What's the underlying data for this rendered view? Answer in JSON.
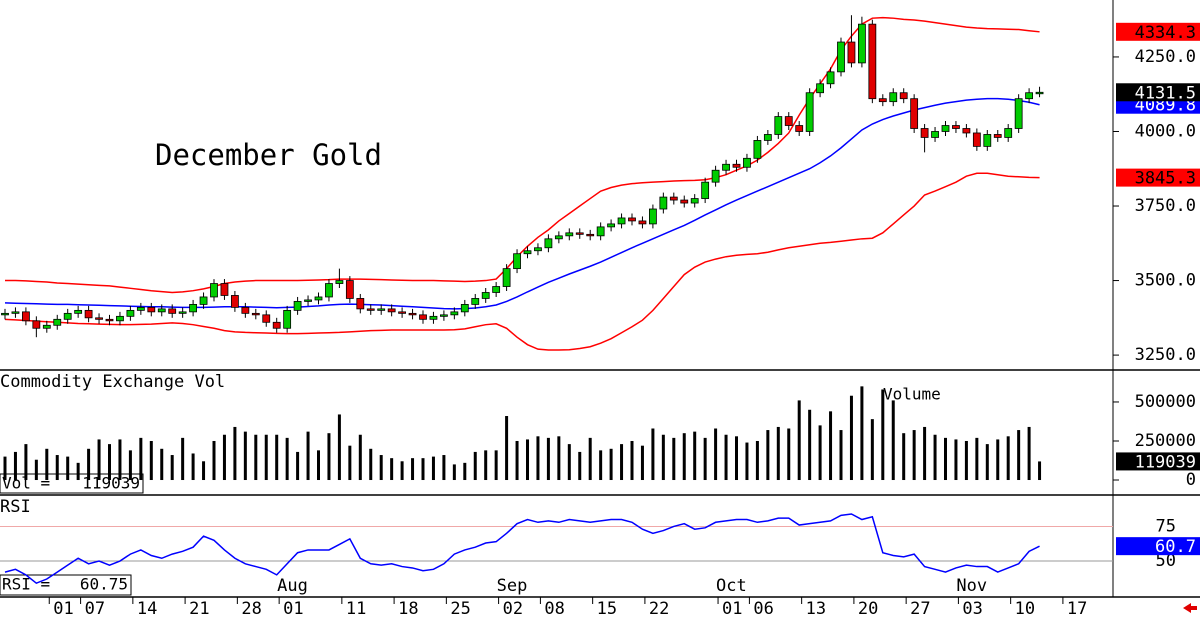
{
  "chart_data": {
    "type": "candlestick",
    "title": "December Gold",
    "categories": [
      null,
      null,
      null,
      null,
      null,
      "01",
      null,
      null,
      "07",
      null,
      null,
      null,
      null,
      "14",
      null,
      null,
      null,
      null,
      "21",
      null,
      null,
      null,
      null,
      "28",
      null,
      null,
      null,
      "01",
      null,
      null,
      null,
      null,
      null,
      "11",
      null,
      null,
      null,
      null,
      "18",
      null,
      null,
      null,
      null,
      "25",
      null,
      null,
      null,
      null,
      "02",
      null,
      null,
      null,
      "08",
      null,
      null,
      null,
      null,
      "15",
      null,
      null,
      null,
      null,
      "22",
      null,
      null,
      null,
      null,
      null,
      null,
      "01",
      null,
      null,
      "06",
      null,
      null,
      null,
      null,
      "13",
      null,
      null,
      null,
      null,
      "20",
      null,
      null,
      null,
      null,
      "27",
      null,
      null,
      null,
      null,
      "03",
      null,
      null,
      null,
      null,
      "10",
      null,
      null,
      null,
      null,
      "17"
    ],
    "months": [
      null,
      null,
      null,
      null,
      null,
      null,
      null,
      null,
      null,
      null,
      null,
      null,
      null,
      null,
      null,
      null,
      null,
      null,
      null,
      null,
      null,
      null,
      null,
      null,
      null,
      null,
      null,
      "Aug",
      null,
      null,
      null,
      null,
      null,
      null,
      null,
      null,
      null,
      null,
      null,
      null,
      null,
      null,
      null,
      null,
      null,
      null,
      null,
      null,
      "Sep",
      null,
      null,
      null,
      null,
      null,
      null,
      null,
      null,
      null,
      null,
      null,
      null,
      null,
      null,
      null,
      null,
      null,
      null,
      null,
      null,
      "Oct",
      null,
      null,
      null,
      null,
      null,
      null,
      null,
      null,
      null,
      null,
      null,
      null,
      null,
      null,
      null,
      null,
      null,
      null,
      null,
      null,
      null,
      null,
      "Nov",
      null,
      null,
      null,
      null,
      null,
      null,
      null,
      null,
      null,
      null
    ],
    "open": [
      3385,
      3390,
      3395,
      3365,
      3340,
      3350,
      3370,
      3390,
      3400,
      3375,
      3370,
      3365,
      3380,
      3400,
      3410,
      3395,
      3405,
      3390,
      3395,
      3420,
      3445,
      3490,
      3450,
      3410,
      3390,
      3385,
      3360,
      3340,
      3400,
      3430,
      3435,
      3445,
      3490,
      3500,
      3440,
      3405,
      3400,
      3405,
      3395,
      3390,
      3385,
      3370,
      3380,
      3385,
      3395,
      3420,
      3440,
      3460,
      3480,
      3540,
      3590,
      3600,
      3610,
      3640,
      3650,
      3660,
      3655,
      3650,
      3680,
      3690,
      3710,
      3700,
      3690,
      3740,
      3780,
      3770,
      3760,
      3775,
      3830,
      3870,
      3890,
      3880,
      3910,
      3970,
      3990,
      4050,
      4020,
      4000,
      4130,
      4160,
      4200,
      4300,
      4230,
      4360,
      4110,
      4100,
      4130,
      4110,
      4010,
      3980,
      4000,
      4020,
      4010,
      3995,
      3950,
      3990,
      3980,
      4010,
      4110,
      4130,
      null,
      null,
      null
    ],
    "high": [
      3405,
      3410,
      3410,
      3380,
      3365,
      3385,
      3405,
      3415,
      3415,
      3390,
      3385,
      3395,
      3415,
      3425,
      3425,
      3420,
      3420,
      3410,
      3435,
      3460,
      3505,
      3505,
      3465,
      3425,
      3405,
      3400,
      3375,
      3415,
      3445,
      3450,
      3460,
      3505,
      3540,
      3515,
      3455,
      3420,
      3420,
      3420,
      3410,
      3405,
      3400,
      3395,
      3400,
      3410,
      3435,
      3455,
      3475,
      3495,
      3555,
      3605,
      3615,
      3625,
      3655,
      3665,
      3675,
      3675,
      3670,
      3695,
      3705,
      3725,
      3725,
      3715,
      3755,
      3795,
      3795,
      3785,
      3790,
      3845,
      3885,
      3905,
      3905,
      3925,
      3985,
      4005,
      4065,
      4065,
      4035,
      4145,
      4175,
      4215,
      4315,
      4390,
      4385,
      4375,
      4125,
      4145,
      4145,
      4125,
      4025,
      4015,
      4035,
      4035,
      4025,
      4010,
      4005,
      4005,
      4025,
      4125,
      4145,
      4150,
      null,
      null,
      null
    ],
    "low": [
      3370,
      3375,
      3350,
      3310,
      3325,
      3335,
      3355,
      3375,
      3360,
      3355,
      3350,
      3350,
      3365,
      3385,
      3380,
      3380,
      3375,
      3375,
      3380,
      3405,
      3430,
      3435,
      3395,
      3375,
      3370,
      3345,
      3325,
      3325,
      3385,
      3415,
      3420,
      3430,
      3475,
      3425,
      3390,
      3385,
      3385,
      3380,
      3375,
      3370,
      3355,
      3355,
      3365,
      3370,
      3380,
      3405,
      3425,
      3445,
      3465,
      3525,
      3575,
      3585,
      3595,
      3625,
      3635,
      3640,
      3635,
      3635,
      3665,
      3675,
      3685,
      3675,
      3675,
      3725,
      3755,
      3745,
      3745,
      3760,
      3815,
      3855,
      3865,
      3865,
      3895,
      3955,
      3975,
      4005,
      3985,
      3985,
      4115,
      4145,
      4185,
      4215,
      4215,
      4095,
      4085,
      4085,
      4095,
      3995,
      3930,
      3965,
      3985,
      3995,
      3980,
      3935,
      3935,
      3965,
      3965,
      3995,
      4095,
      4115,
      null,
      null,
      null
    ],
    "close": [
      3390,
      3395,
      3365,
      3340,
      3350,
      3370,
      3390,
      3400,
      3375,
      3370,
      3365,
      3380,
      3400,
      3410,
      3395,
      3405,
      3390,
      3395,
      3420,
      3445,
      3490,
      3450,
      3410,
      3390,
      3385,
      3360,
      3340,
      3400,
      3430,
      3435,
      3445,
      3490,
      3500,
      3440,
      3405,
      3400,
      3405,
      3395,
      3390,
      3385,
      3370,
      3380,
      3385,
      3395,
      3420,
      3440,
      3460,
      3480,
      3540,
      3590,
      3600,
      3610,
      3640,
      3650,
      3660,
      3655,
      3650,
      3680,
      3690,
      3710,
      3700,
      3690,
      3740,
      3780,
      3770,
      3760,
      3775,
      3830,
      3870,
      3890,
      3880,
      3910,
      3970,
      3990,
      4050,
      4020,
      4000,
      4130,
      4160,
      4200,
      4300,
      4230,
      4360,
      4110,
      4100,
      4130,
      4110,
      4010,
      3980,
      4000,
      4020,
      4010,
      3995,
      3950,
      3990,
      3980,
      4010,
      4110,
      4130,
      4131.5,
      null,
      null,
      null
    ],
    "up_color": "#00cc00",
    "down_color": "#e00000",
    "bands": {
      "upper": {
        "color": "#ff0000",
        "values": [
          3500,
          3500,
          3499,
          3497,
          3495,
          3492,
          3490,
          3488,
          3486,
          3484,
          3482,
          3478,
          3474,
          3470,
          3466,
          3463,
          3460,
          3462,
          3466,
          3472,
          3480,
          3490,
          3495,
          3498,
          3500,
          3500,
          3500,
          3500,
          3500,
          3501,
          3502,
          3503,
          3505,
          3505,
          3505,
          3504,
          3503,
          3502,
          3501,
          3500,
          3500,
          3500,
          3499,
          3498,
          3497,
          3498,
          3500,
          3505,
          3540,
          3580,
          3615,
          3645,
          3670,
          3700,
          3725,
          3750,
          3775,
          3800,
          3812,
          3820,
          3825,
          3828,
          3830,
          3832,
          3834,
          3835,
          3836,
          3838,
          3845,
          3855,
          3870,
          3885,
          3904,
          3930,
          3960,
          3995,
          4055,
          4110,
          4160,
          4210,
          4273,
          4320,
          4360,
          4380,
          4382,
          4380,
          4376,
          4374,
          4370,
          4365,
          4360,
          4355,
          4350,
          4347,
          4345,
          4344,
          4343,
          4342,
          4338,
          4334.3,
          null,
          null,
          null
        ]
      },
      "middle": {
        "color": "#0000ff",
        "values": [
          3425,
          3424,
          3423,
          3422,
          3421,
          3420,
          3420,
          3419,
          3418,
          3417,
          3416,
          3415,
          3414,
          3413,
          3412,
          3412,
          3411,
          3410,
          3410,
          3410,
          3411,
          3412,
          3412,
          3412,
          3411,
          3410,
          3409,
          3410,
          3411,
          3413,
          3415,
          3418,
          3420,
          3421,
          3420,
          3419,
          3418,
          3416,
          3414,
          3412,
          3410,
          3408,
          3406,
          3405,
          3406,
          3408,
          3412,
          3418,
          3430,
          3445,
          3462,
          3478,
          3494,
          3508,
          3522,
          3535,
          3548,
          3562,
          3578,
          3594,
          3610,
          3625,
          3640,
          3655,
          3670,
          3685,
          3702,
          3720,
          3737,
          3754,
          3770,
          3785,
          3800,
          3815,
          3830,
          3845,
          3860,
          3875,
          3895,
          3918,
          3945,
          3975,
          4005,
          4025,
          4040,
          4052,
          4062,
          4072,
          4080,
          4088,
          4095,
          4100,
          4105,
          4108,
          4110,
          4110,
          4108,
          4104,
          4098,
          4089.8,
          null,
          null,
          null
        ]
      },
      "lower": {
        "color": "#ff0000",
        "values": [
          3370,
          3368,
          3366,
          3364,
          3362,
          3360,
          3358,
          3356,
          3355,
          3354,
          3353,
          3352,
          3352,
          3353,
          3354,
          3356,
          3358,
          3356,
          3352,
          3346,
          3340,
          3332,
          3328,
          3326,
          3325,
          3324,
          3323,
          3322,
          3322,
          3323,
          3324,
          3325,
          3326,
          3328,
          3330,
          3332,
          3333,
          3334,
          3334,
          3334,
          3334,
          3334,
          3334,
          3335,
          3338,
          3345,
          3352,
          3355,
          3340,
          3310,
          3285,
          3270,
          3267,
          3267,
          3268,
          3272,
          3278,
          3290,
          3305,
          3325,
          3345,
          3367,
          3400,
          3440,
          3480,
          3520,
          3545,
          3562,
          3572,
          3580,
          3585,
          3588,
          3590,
          3595,
          3603,
          3610,
          3615,
          3620,
          3625,
          3628,
          3632,
          3636,
          3640,
          3642,
          3660,
          3690,
          3720,
          3750,
          3787,
          3800,
          3815,
          3830,
          3850,
          3860,
          3860,
          3855,
          3850,
          3848,
          3846,
          3845.3,
          null,
          null,
          null
        ]
      }
    },
    "ylim": [
      3200,
      4441
    ],
    "yticks": [
      {
        "value": 3250,
        "label": "3250.0"
      },
      {
        "value": 3500,
        "label": "3500.0"
      },
      {
        "value": 3750,
        "label": "3750.0"
      },
      {
        "value": 4000,
        "label": "4000.0"
      },
      {
        "value": 4250,
        "label": "4250.0"
      }
    ],
    "volume": {
      "title": "Commodity Exchange Vol",
      "annotation": "Volume",
      "box_label": "Vol =",
      "color": "#000000",
      "values": [
        150000,
        180000,
        230000,
        130000,
        200000,
        160000,
        150000,
        110000,
        200000,
        260000,
        230000,
        260000,
        190000,
        270000,
        250000,
        200000,
        160000,
        270000,
        170000,
        120000,
        250000,
        290000,
        340000,
        310000,
        290000,
        290000,
        290000,
        270000,
        180000,
        310000,
        190000,
        300000,
        420000,
        220000,
        290000,
        200000,
        160000,
        140000,
        120000,
        140000,
        140000,
        150000,
        160000,
        100000,
        110000,
        180000,
        190000,
        190000,
        410000,
        250000,
        260000,
        280000,
        270000,
        280000,
        230000,
        180000,
        270000,
        190000,
        200000,
        230000,
        250000,
        220000,
        330000,
        290000,
        270000,
        300000,
        310000,
        270000,
        330000,
        290000,
        280000,
        240000,
        250000,
        320000,
        340000,
        330000,
        510000,
        450000,
        350000,
        440000,
        320000,
        540000,
        600000,
        390000,
        580000,
        510000,
        300000,
        320000,
        340000,
        290000,
        270000,
        260000,
        250000,
        270000,
        230000,
        260000,
        280000,
        320000,
        340000,
        119039,
        null,
        null,
        null
      ],
      "ylim": [
        -96000,
        692000
      ],
      "yticks": [
        500000,
        250000,
        0
      ]
    },
    "rsi": {
      "title": "RSI",
      "box_label": "RSI =",
      "axis_label": "60.7",
      "color": "#0000ff",
      "values": [
        42,
        44,
        40,
        34,
        37,
        42,
        47,
        52,
        48,
        50,
        47,
        50,
        55,
        58,
        54,
        52,
        55,
        57,
        60,
        68,
        65,
        58,
        52,
        48,
        46,
        44,
        40,
        48,
        56,
        58,
        58,
        58,
        62,
        66,
        52,
        48,
        47,
        48,
        46,
        45,
        43,
        44,
        48,
        55,
        58,
        60,
        63,
        64,
        70,
        77,
        80,
        78,
        79,
        78,
        80,
        79,
        78,
        79,
        80,
        80,
        78,
        73,
        70,
        72,
        75,
        77,
        73,
        74,
        78,
        79,
        80,
        80,
        78,
        79,
        81,
        81,
        76,
        77,
        78,
        79,
        83,
        84,
        80,
        82,
        56,
        54,
        53,
        55,
        46,
        44,
        42,
        45,
        47,
        46,
        46,
        42,
        45,
        48,
        57,
        60.75,
        null,
        null,
        null
      ],
      "ylim": [
        24,
        97
      ],
      "yticks": [
        75,
        50
      ]
    }
  }
}
